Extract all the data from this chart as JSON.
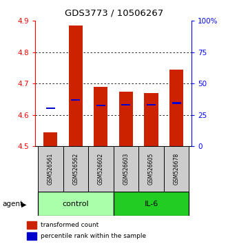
{
  "title": "GDS3773 / 10506267",
  "samples": [
    "GSM526561",
    "GSM526562",
    "GSM526602",
    "GSM526603",
    "GSM526605",
    "GSM526678"
  ],
  "bar_bottoms": [
    4.5,
    4.5,
    4.5,
    4.5,
    4.5,
    4.5
  ],
  "bar_tops": [
    4.545,
    4.885,
    4.69,
    4.675,
    4.67,
    4.745
  ],
  "blue_positions": [
    4.622,
    4.648,
    4.63,
    4.633,
    4.633,
    4.638
  ],
  "ylim": [
    4.5,
    4.9
  ],
  "yticks": [
    4.5,
    4.6,
    4.7,
    4.8,
    4.9
  ],
  "right_yticks_pct": [
    0,
    25,
    50,
    75,
    100
  ],
  "right_ytick_labels": [
    "0",
    "25",
    "50",
    "75",
    "100%"
  ],
  "bar_color": "#cc2200",
  "blue_color": "#0000cc",
  "control_color": "#aaffaa",
  "il6_color": "#22cc22",
  "bg_color": "#cccccc",
  "legend_red_label": "transformed count",
  "legend_blue_label": "percentile rank within the sample",
  "agent_label": "agent",
  "control_label": "control",
  "il6_label": "IL-6",
  "grid_ticks": [
    4.6,
    4.7,
    4.8
  ]
}
